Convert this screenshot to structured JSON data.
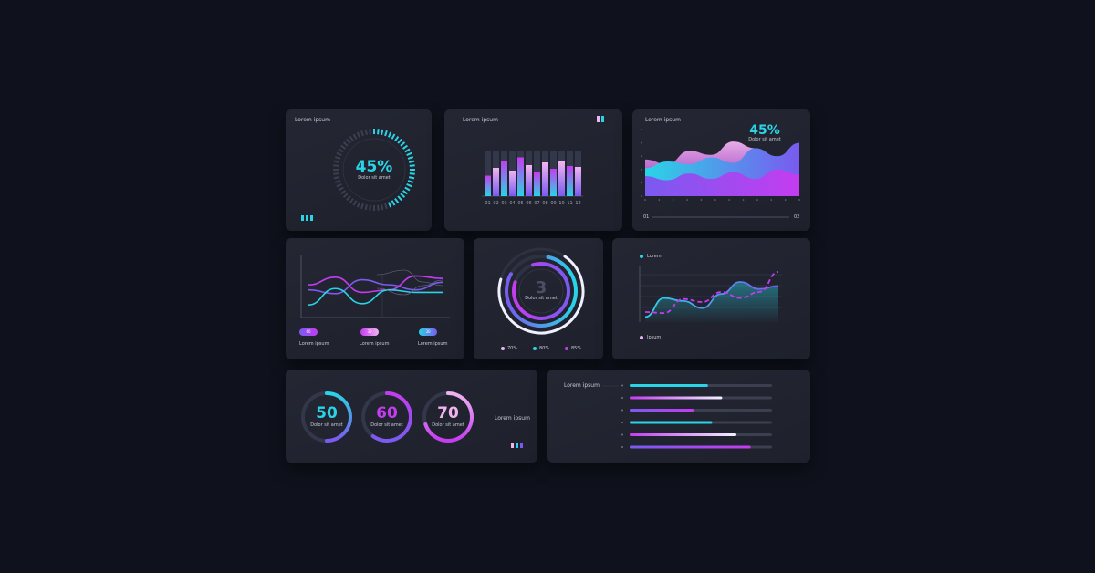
{
  "cards": {
    "gauge": {
      "title": "Lorem ipsum",
      "value": "45%",
      "caption": "Dolor sit amet"
    },
    "bars": {
      "title": "Lorem ipsum"
    },
    "area": {
      "title": "Lorem ipsum",
      "value": "45%",
      "caption": "Dolor sit amet",
      "start_label": "01",
      "end_label": "02"
    },
    "waves": {
      "pills": [
        {
          "value": "60",
          "label": "Lorem ipsum"
        },
        {
          "value": "30",
          "label": "Lorem ipsum"
        },
        {
          "value": "30",
          "label": "Lorem ipsum"
        }
      ]
    },
    "rings": {
      "value": "3",
      "caption": "Dolor sit amet",
      "legend": [
        "70%",
        "80%",
        "85%"
      ]
    },
    "lines": {
      "legend_top": "Lorem",
      "legend_bottom": "Ipsum"
    },
    "donuts": {
      "items": [
        {
          "value": "50",
          "caption": "Dolor sit amet"
        },
        {
          "value": "60",
          "caption": "Dolor sit amet"
        },
        {
          "value": "70",
          "caption": "Dolor sit amet"
        }
      ],
      "label": "Lorem ipsum"
    },
    "progress": {
      "title": "Lorem ipsum"
    }
  },
  "colors": {
    "background": "#0f121c",
    "card": "#22252f",
    "cyan": "#2ad4e6",
    "magenta": "#c43cf0",
    "purple": "#7a5af0",
    "pink": "#f0b4f0"
  },
  "chart_data": [
    {
      "type": "gauge",
      "value": 45,
      "max": 100
    },
    {
      "type": "bar",
      "categories": [
        "01",
        "02",
        "03",
        "04",
        "05",
        "06",
        "07",
        "08",
        "09",
        "10",
        "11",
        "12"
      ],
      "values": [
        45,
        62,
        78,
        56,
        85,
        68,
        52,
        74,
        60,
        76,
        66,
        64
      ],
      "ylim": [
        0,
        100
      ]
    },
    {
      "type": "area",
      "series": [
        {
          "values": [
            55,
            48,
            68,
            62,
            82,
            72,
            58,
            62
          ]
        },
        {
          "values": [
            42,
            52,
            48,
            58,
            50,
            72,
            60,
            80
          ]
        },
        {
          "values": [
            30,
            24,
            34,
            26,
            36,
            26,
            40,
            32
          ]
        }
      ],
      "ylim": [
        0,
        100
      ]
    },
    {
      "type": "line",
      "series": [
        {
          "values": [
            44,
            38,
            60,
            52,
            44,
            56
          ]
        },
        {
          "values": [
            52,
            64,
            40,
            44,
            66,
            62
          ]
        },
        {
          "values": [
            20,
            46,
            22,
            44,
            40,
            40
          ]
        }
      ],
      "ylim": [
        0,
        100
      ]
    },
    {
      "type": "pie",
      "values": [
        70,
        80,
        85
      ]
    },
    {
      "type": "line",
      "series": [
        {
          "values": [
            10,
            48,
            42,
            28,
            56,
            80,
            66,
            72
          ]
        },
        {
          "values": [
            20,
            18,
            46,
            40,
            60,
            48,
            60,
            100
          ]
        }
      ],
      "ylim": [
        0,
        100
      ]
    },
    {
      "type": "pie",
      "values": [
        50,
        60,
        70
      ],
      "max": 100
    },
    {
      "type": "bar",
      "values": [
        55,
        65,
        45,
        58,
        75,
        85
      ],
      "max": 100
    }
  ]
}
